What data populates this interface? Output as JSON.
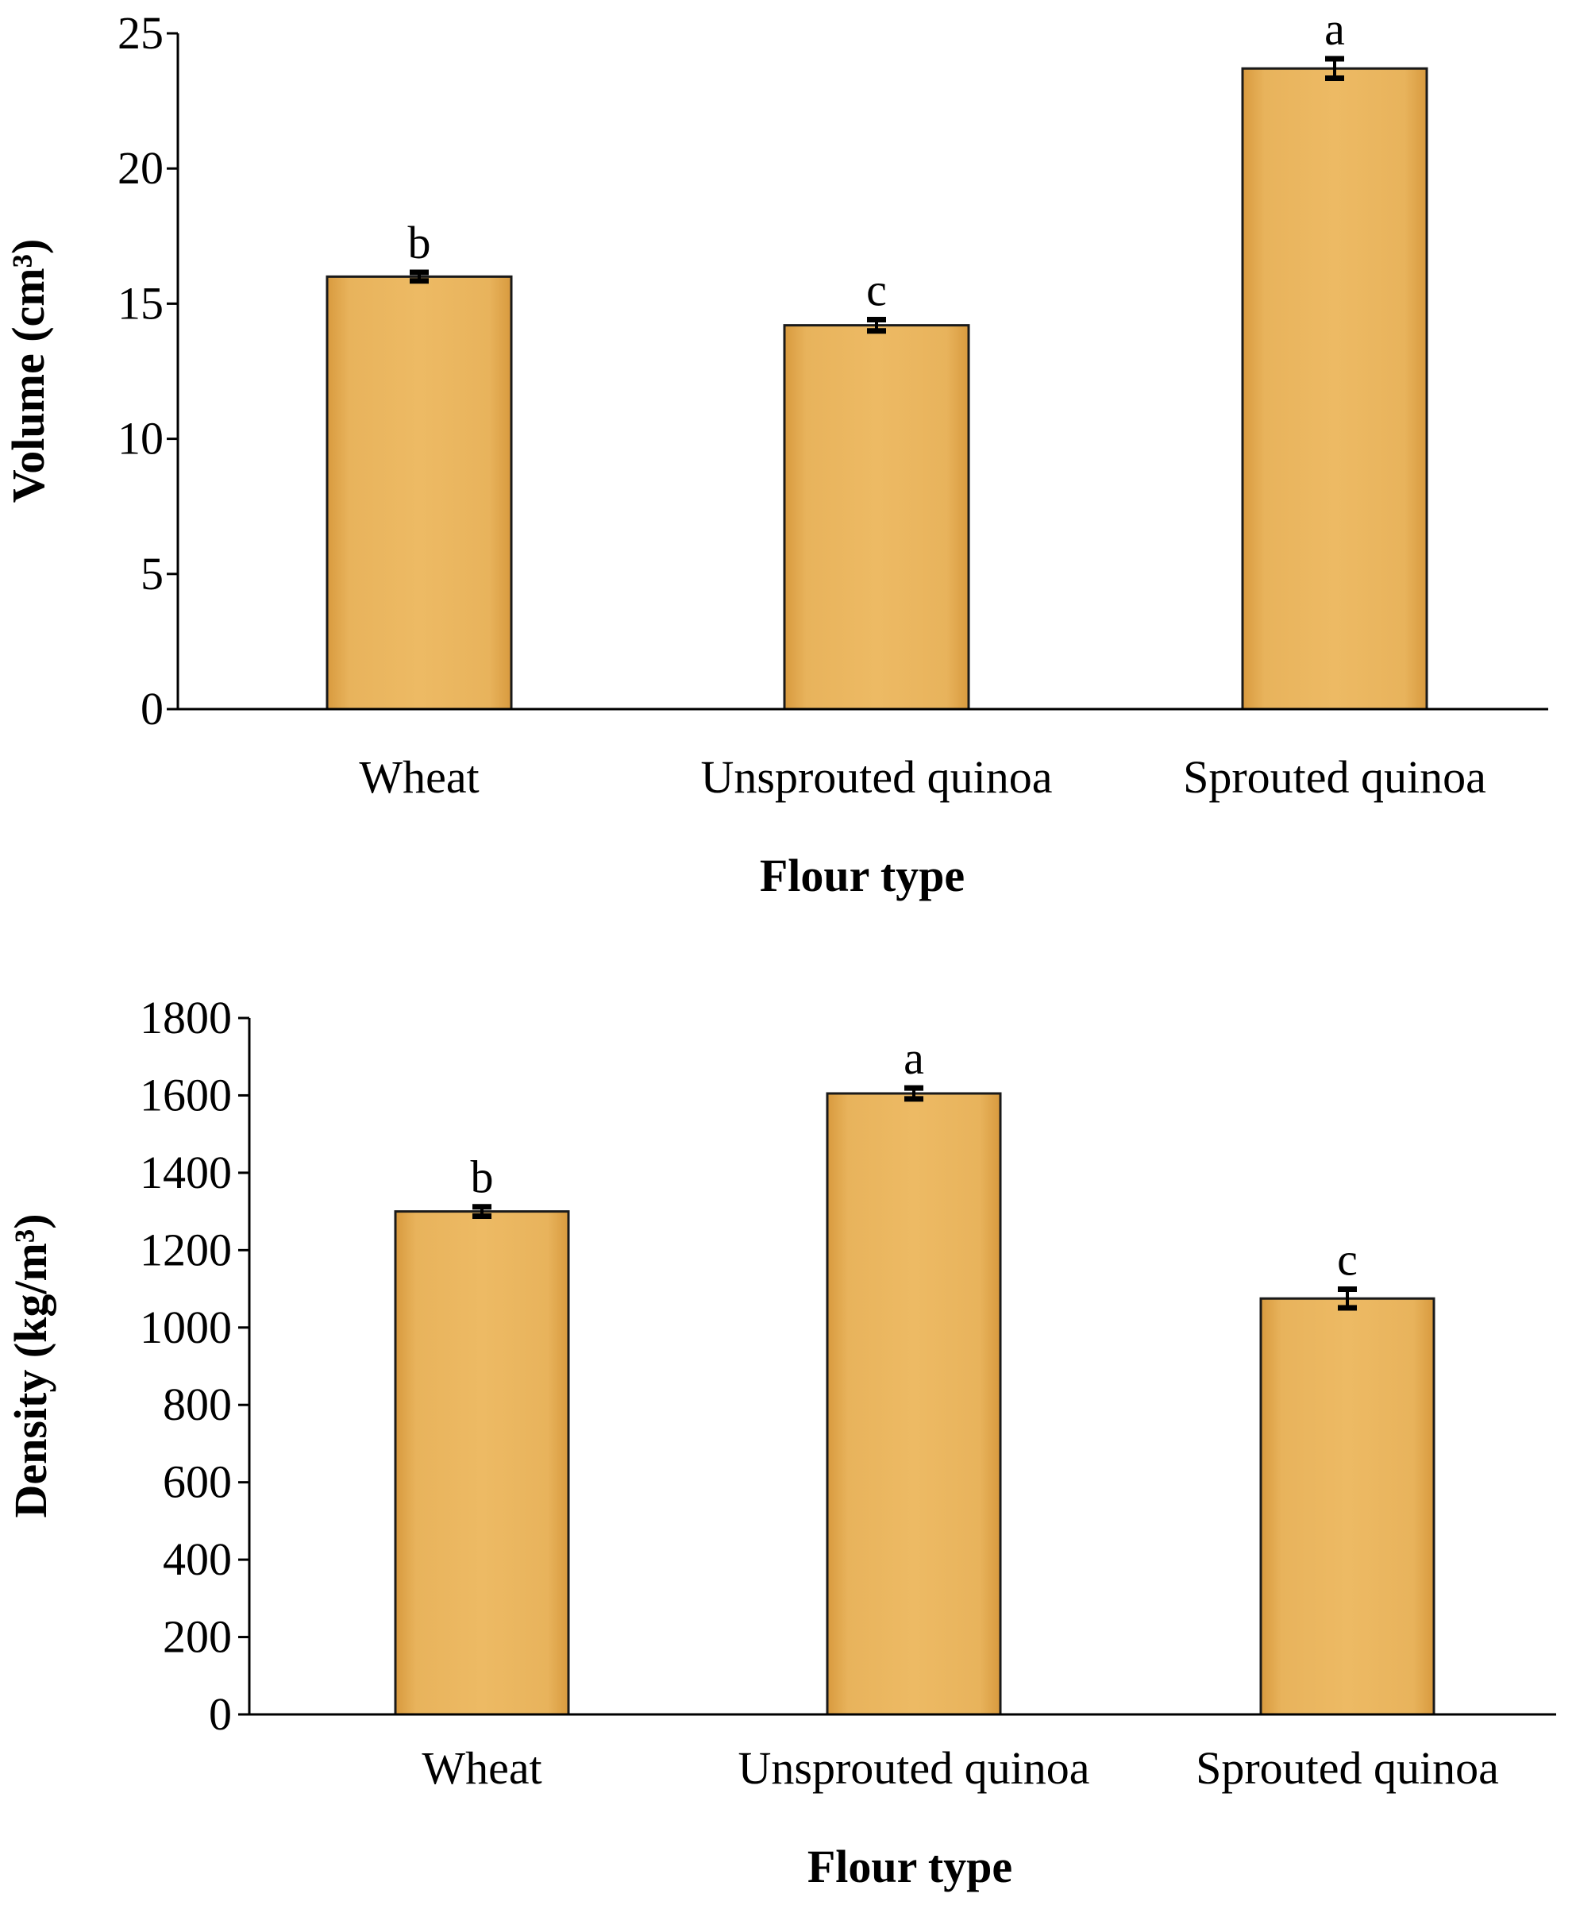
{
  "colors": {
    "bar_fill": "#E2AA50",
    "bar_outline": "#1a1a1a"
  },
  "chart_data": [
    {
      "type": "bar",
      "title": "",
      "xlabel": "Flour type",
      "ylabel": "Volume (cm³)",
      "ylim": [
        0,
        25
      ],
      "yticks": [
        "0",
        "5",
        "10",
        "15",
        "20",
        "25"
      ],
      "categories": [
        "Wheat",
        "Unsprouted quinoa",
        "Sprouted quinoa"
      ],
      "values": [
        16.0,
        14.2,
        23.7
      ],
      "errors": [
        0.1,
        0.15,
        0.3
      ],
      "significance": [
        "b",
        "c",
        "a"
      ],
      "grid": false,
      "legend": "none"
    },
    {
      "type": "bar",
      "title": "",
      "xlabel": "Flour type",
      "ylabel": "Density (kg/m³)",
      "ylim": [
        0,
        1800
      ],
      "yticks": [
        "0",
        "200",
        "400",
        "600",
        "800",
        "1000",
        "1200",
        "1400",
        "1600",
        "1800"
      ],
      "categories": [
        "Wheat",
        "Unsprouted quinoa",
        "Sprouted quinoa"
      ],
      "values": [
        1300,
        1605,
        1075
      ],
      "errors": [
        8,
        10,
        20
      ],
      "significance": [
        "b",
        "a",
        "c"
      ],
      "grid": false,
      "legend": "none"
    }
  ]
}
